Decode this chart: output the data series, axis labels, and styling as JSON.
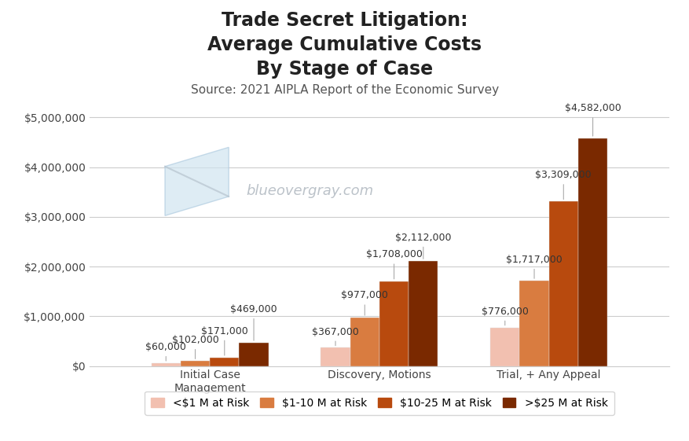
{
  "title_line1": "Trade Secret Litigation:",
  "title_line2": "Average Cumulative Costs",
  "title_line3": "By Stage of Case",
  "subtitle": "Source: 2021 AIPLA Report of the Economic Survey",
  "watermark": "blueovergray.com",
  "categories": [
    "Initial Case\nManagement",
    "Discovery, Motions",
    "Trial, + Any Appeal"
  ],
  "series": [
    {
      "label": "<$1 M at Risk",
      "color": "#f2c0b0",
      "values": [
        60000,
        367000,
        776000
      ]
    },
    {
      "label": "$1-10 M at Risk",
      "color": "#d97c40",
      "values": [
        102000,
        977000,
        1717000
      ]
    },
    {
      "label": "$10-25 M at Risk",
      "color": "#b84a0e",
      "values": [
        171000,
        1708000,
        3309000
      ]
    },
    {
      "label": ">$25 M at Risk",
      "color": "#7a2900",
      "values": [
        469000,
        2112000,
        4582000
      ]
    }
  ],
  "value_labels": [
    [
      "$60,000",
      "$102,000",
      "$171,000",
      "$469,000"
    ],
    [
      "$367,000",
      "$977,000",
      "$1,708,000",
      "$2,112,000"
    ],
    [
      "$776,000",
      "$1,717,000",
      "$3,309,000",
      "$4,582,000"
    ]
  ],
  "ylim": [
    0,
    5500000
  ],
  "yticks": [
    0,
    1000000,
    2000000,
    3000000,
    4000000,
    5000000
  ],
  "ytick_labels": [
    "$0",
    "$1,000,000",
    "$2,000,000",
    "$3,000,000",
    "$4,000,000",
    "$5,000,000"
  ],
  "bar_width": 0.19,
  "background_color": "#ffffff",
  "grid_color": "#cccccc",
  "title_fontsize": 17,
  "subtitle_fontsize": 11,
  "tick_fontsize": 10,
  "label_fontsize": 9,
  "legend_fontsize": 10
}
